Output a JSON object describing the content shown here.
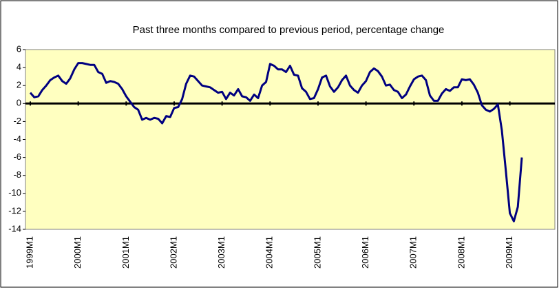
{
  "chart_data": {
    "type": "line",
    "title": "Past three months compared to previous period,  percentage change",
    "categories": [
      "1999M1",
      null,
      null,
      null,
      null,
      null,
      null,
      null,
      null,
      null,
      null,
      null,
      "2000M1",
      null,
      null,
      null,
      null,
      null,
      null,
      null,
      null,
      null,
      null,
      null,
      "2001M1",
      null,
      null,
      null,
      null,
      null,
      null,
      null,
      null,
      null,
      null,
      null,
      "2002M1",
      null,
      null,
      null,
      null,
      null,
      null,
      null,
      null,
      null,
      null,
      null,
      "2003M1",
      null,
      null,
      null,
      null,
      null,
      null,
      null,
      null,
      null,
      null,
      null,
      "2004M1",
      null,
      null,
      null,
      null,
      null,
      null,
      null,
      null,
      null,
      null,
      null,
      "2005M1",
      null,
      null,
      null,
      null,
      null,
      null,
      null,
      null,
      null,
      null,
      null,
      "2006M1",
      null,
      null,
      null,
      null,
      null,
      null,
      null,
      null,
      null,
      null,
      null,
      "2007M1",
      null,
      null,
      null,
      null,
      null,
      null,
      null,
      null,
      null,
      null,
      null,
      "2008M1",
      null,
      null,
      null,
      null,
      null,
      null,
      null,
      null,
      null,
      null,
      null,
      "2009M1",
      null,
      null,
      null
    ],
    "values": [
      1.2,
      0.7,
      0.8,
      1.5,
      2.0,
      2.6,
      2.9,
      3.1,
      2.5,
      2.2,
      2.8,
      3.8,
      4.5,
      4.5,
      4.4,
      4.3,
      4.3,
      3.5,
      3.3,
      2.3,
      2.5,
      2.4,
      2.2,
      1.6,
      0.8,
      0.2,
      -0.4,
      -0.7,
      -1.8,
      -1.6,
      -1.8,
      -1.6,
      -1.7,
      -2.2,
      -1.4,
      -1.5,
      -0.5,
      -0.4,
      0.5,
      2.2,
      3.1,
      3.0,
      2.5,
      2.0,
      1.9,
      1.8,
      1.5,
      1.2,
      1.3,
      0.5,
      1.2,
      0.9,
      1.6,
      0.8,
      0.7,
      0.3,
      1.0,
      0.6,
      2.0,
      2.4,
      4.4,
      4.2,
      3.8,
      3.8,
      3.5,
      4.2,
      3.2,
      3.1,
      1.7,
      1.3,
      0.5,
      0.6,
      1.6,
      2.9,
      3.1,
      1.9,
      1.3,
      1.8,
      2.6,
      3.1,
      2.0,
      1.5,
      1.2,
      2.0,
      2.5,
      3.5,
      3.9,
      3.6,
      3.0,
      2.0,
      2.1,
      1.5,
      1.3,
      0.6,
      1.0,
      1.9,
      2.7,
      3.0,
      3.1,
      2.6,
      0.9,
      0.3,
      0.3,
      1.1,
      1.6,
      1.4,
      1.8,
      1.8,
      2.7,
      2.6,
      2.7,
      2.1,
      1.2,
      -0.2,
      -0.7,
      -0.9,
      -0.6,
      -0.1,
      -3.0,
      -7.5,
      -12.2,
      -13.1,
      -11.5,
      -6.0
    ],
    "color": "#000080",
    "ylim": [
      -14,
      6
    ],
    "yticks": [
      -14,
      -12,
      -10,
      -8,
      -6,
      -4,
      -2,
      0,
      2,
      4,
      6
    ]
  }
}
